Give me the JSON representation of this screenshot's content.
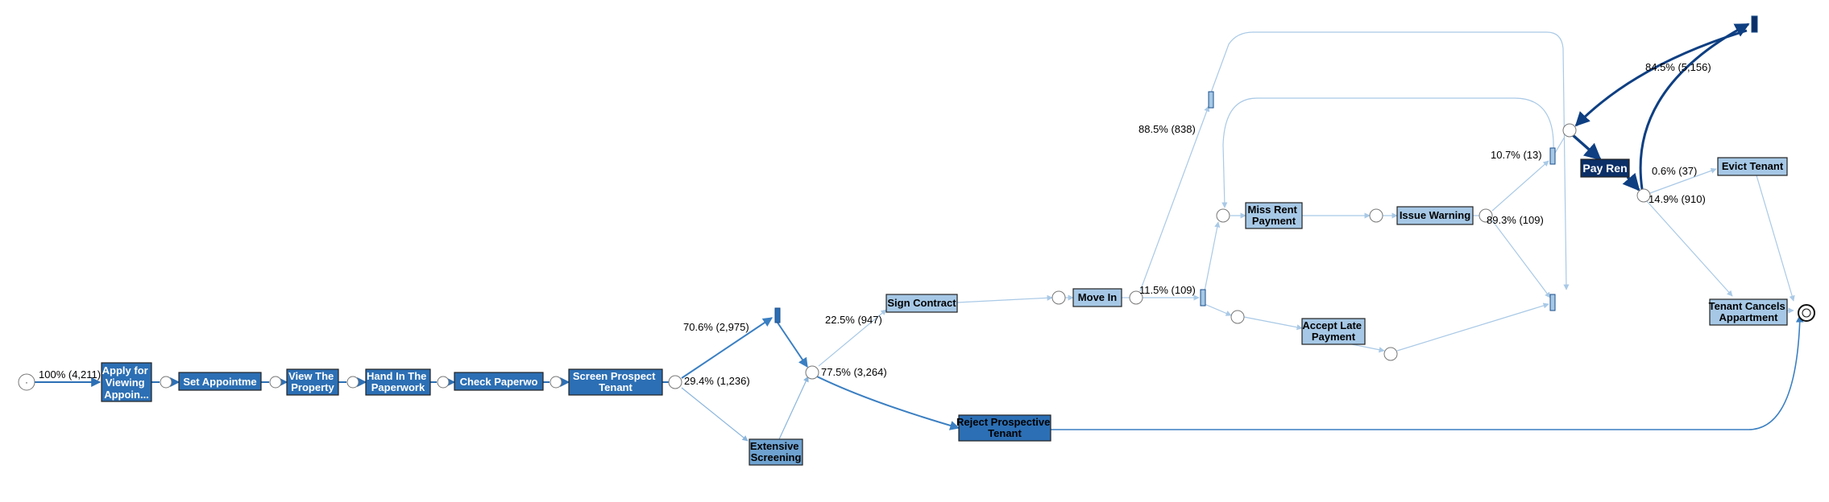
{
  "colors": {
    "node_dark": "#1a4e8a",
    "node_mid": "#2c6fb4",
    "node_medium": "#6ea2d0",
    "node_light": "#a6c8e6",
    "node_darkest": "#0b2f66",
    "edge_dark": "#0e3f82",
    "edge_mid": "#3a7fc2",
    "edge_light": "#a9c9e6",
    "white_text": "#ffffff",
    "black_text": "#000000"
  },
  "activities": {
    "apply": [
      "Apply for",
      "Viewing",
      "Appoin..."
    ],
    "set_appointment": [
      "Set Appointme"
    ],
    "view_property": [
      "View The",
      "Property"
    ],
    "hand_in": [
      "Hand In The",
      "Paperwork"
    ],
    "check_paperwork": [
      "Check Paperwo"
    ],
    "screen": [
      "Screen Prospect",
      "Tenant"
    ],
    "extensive": [
      "Extensive",
      "Screening"
    ],
    "sign_contract": [
      "Sign Contract"
    ],
    "reject": [
      "Reject Prospective",
      "Tenant"
    ],
    "move_in": [
      "Move In"
    ],
    "miss_rent": [
      "Miss Rent",
      "Payment"
    ],
    "issue_warning": [
      "Issue Warning"
    ],
    "accept_late": [
      "Accept Late",
      "Payment"
    ],
    "pay_rent": [
      "Pay Ren"
    ],
    "evict": [
      "Evict Tenant"
    ],
    "tenant_cancels": [
      "Tenant Cancels",
      "Appartment"
    ]
  },
  "edge_labels": {
    "start": "100% (4,211)",
    "screen_upper": "70.6% (2,975)",
    "screen_lower": "29.4% (1,236)",
    "to_sign": "22.5% (947)",
    "to_reject": "77.5% (3,264)",
    "move_upper": "88.5% (838)",
    "move_lower": "11.5% (109)",
    "warning_upper": "10.7% (13)",
    "warning_lower": "89.3% (109)",
    "pay_loop": "84.5% (5,156)",
    "to_evict": "0.6% (37)",
    "to_cancel": "14.9% (910)"
  },
  "start_glyph": "·"
}
